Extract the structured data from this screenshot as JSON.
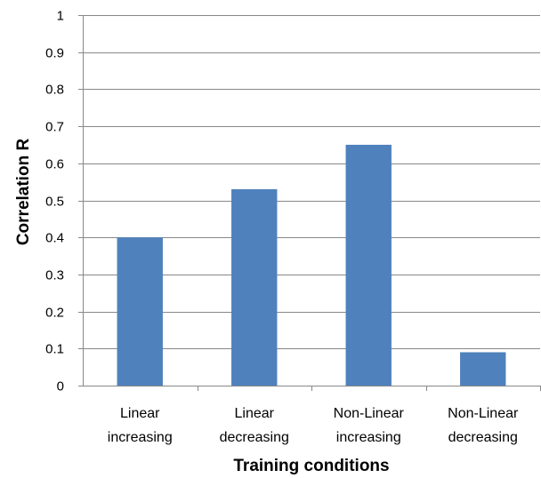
{
  "chart_data": {
    "type": "bar",
    "categories": [
      [
        "Linear",
        "increasing"
      ],
      [
        "Linear",
        "decreasing"
      ],
      [
        "Non-Linear",
        "increasing"
      ],
      [
        "Non-Linear",
        "decreasing"
      ]
    ],
    "values": [
      0.4,
      0.53,
      0.65,
      0.09
    ],
    "xlabel": "Training conditions",
    "ylabel": "Correlation  R",
    "ylim": [
      0,
      1
    ],
    "yticks": [
      "0",
      "0.1",
      "0.2",
      "0.3",
      "0.4",
      "0.5",
      "0.6",
      "0.7",
      "0.8",
      "0.9",
      "1"
    ],
    "grid": true,
    "bar_color": "#4f81bd"
  }
}
